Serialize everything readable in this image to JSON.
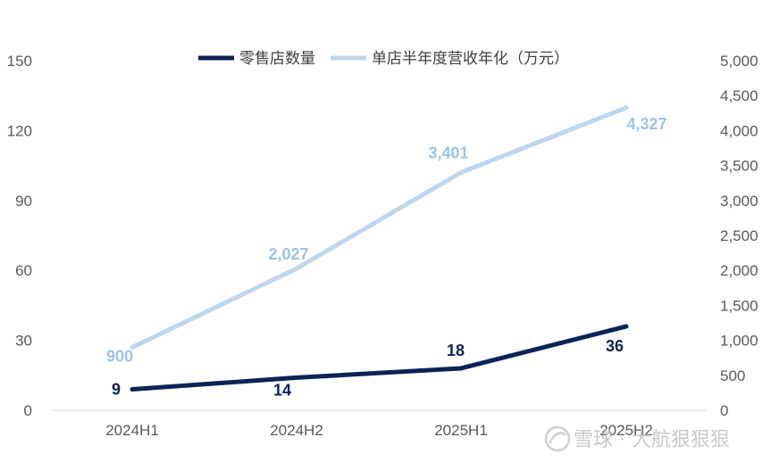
{
  "chart_data": {
    "type": "line",
    "categories": [
      "2024H1",
      "2024H2",
      "2025H1",
      "2025H2"
    ],
    "series": [
      {
        "name": "零售店数量",
        "axis": "left",
        "values": [
          9,
          14,
          18,
          36
        ],
        "labels": [
          "9",
          "14",
          "18",
          "36"
        ],
        "color": "#0c2357"
      },
      {
        "name": "单店半年度营收年化（万元）",
        "axis": "right",
        "values": [
          900,
          2027,
          3401,
          4327
        ],
        "labels": [
          "900",
          "2,027",
          "3,401",
          "4,327"
        ],
        "color": "#bdd7ee"
      }
    ],
    "y_left": {
      "ylim": [
        0,
        150
      ],
      "ticks": [
        "0",
        "30",
        "60",
        "90",
        "120",
        "150"
      ]
    },
    "y_right": {
      "ylim": [
        0,
        5000
      ],
      "ticks": [
        "0",
        "500",
        "1,000",
        "1,500",
        "2,000",
        "2,500",
        "3,000",
        "3,500",
        "4,000",
        "4,500",
        "5,000"
      ]
    },
    "label_colors": {
      "dark": "#0c2357",
      "light": "#9dc3e6"
    },
    "legend_position": "top",
    "grid": false
  },
  "watermark": {
    "text": "雪球 · 大航狠狠狠"
  }
}
